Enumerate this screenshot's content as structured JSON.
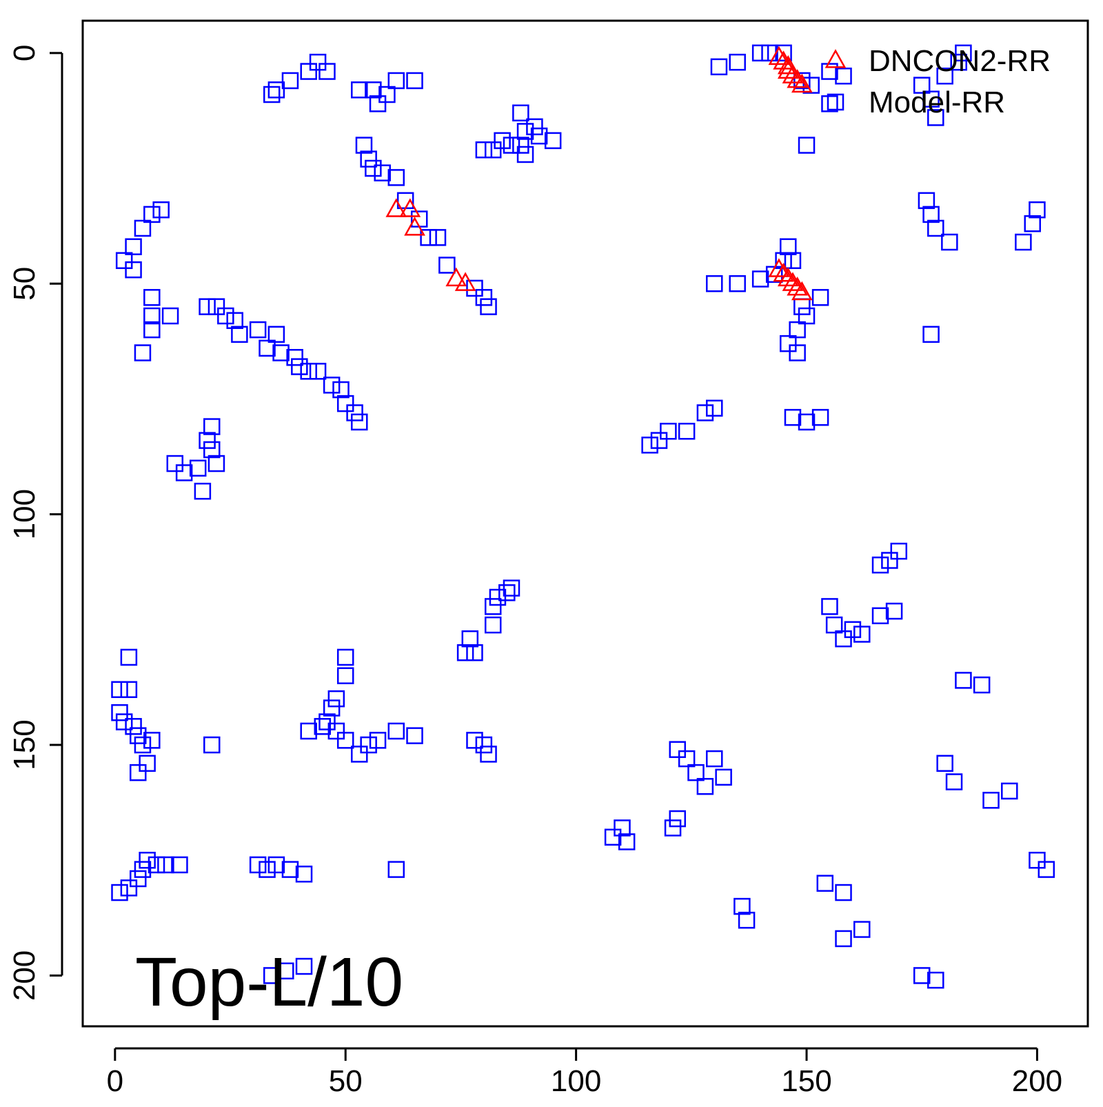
{
  "chart_data": {
    "type": "scatter",
    "title": "",
    "xlabel": "",
    "ylabel": "",
    "xlim": [
      -7,
      211
    ],
    "ylim": [
      211,
      -7
    ],
    "y_axis_reversed": true,
    "xticks": [
      0,
      50,
      100,
      150,
      200
    ],
    "yticks": [
      0,
      50,
      100,
      150,
      200
    ],
    "grid": false,
    "legend_position": "top-right",
    "corner_label": "Top-L/10",
    "series": [
      {
        "name": "DNCON2-RR",
        "marker": "triangle",
        "color": "#ff0000",
        "points": [
          [
            144,
            1
          ],
          [
            145,
            2
          ],
          [
            146,
            3
          ],
          [
            146,
            4
          ],
          [
            147,
            5
          ],
          [
            148,
            6
          ],
          [
            149,
            7
          ],
          [
            61,
            34
          ],
          [
            64,
            34
          ],
          [
            65,
            38
          ],
          [
            74,
            49
          ],
          [
            76,
            50
          ],
          [
            144,
            47
          ],
          [
            145,
            48
          ],
          [
            146,
            49
          ],
          [
            147,
            50
          ],
          [
            148,
            51
          ],
          [
            149,
            52
          ]
        ]
      },
      {
        "name": "Model-RR",
        "marker": "square",
        "color": "#0000ff",
        "points": [
          [
            34,
            9
          ],
          [
            35,
            8
          ],
          [
            38,
            6
          ],
          [
            42,
            4
          ],
          [
            44,
            2
          ],
          [
            46,
            4
          ],
          [
            53,
            8
          ],
          [
            56,
            8
          ],
          [
            57,
            11
          ],
          [
            59,
            9
          ],
          [
            61,
            6
          ],
          [
            65,
            6
          ],
          [
            54,
            20
          ],
          [
            55,
            23
          ],
          [
            56,
            25
          ],
          [
            58,
            26
          ],
          [
            61,
            27
          ],
          [
            63,
            32
          ],
          [
            66,
            36
          ],
          [
            68,
            40
          ],
          [
            70,
            40
          ],
          [
            72,
            46
          ],
          [
            78,
            51
          ],
          [
            80,
            53
          ],
          [
            81,
            55
          ],
          [
            80,
            21
          ],
          [
            82,
            21
          ],
          [
            84,
            19
          ],
          [
            86,
            20
          ],
          [
            88,
            20
          ],
          [
            89,
            17
          ],
          [
            91,
            16
          ],
          [
            92,
            18
          ],
          [
            95,
            19
          ],
          [
            88,
            13
          ],
          [
            89,
            22
          ],
          [
            2,
            45
          ],
          [
            4,
            42
          ],
          [
            4,
            47
          ],
          [
            6,
            38
          ],
          [
            8,
            35
          ],
          [
            10,
            34
          ],
          [
            8,
            53
          ],
          [
            8,
            57
          ],
          [
            8,
            60
          ],
          [
            6,
            65
          ],
          [
            12,
            57
          ],
          [
            20,
            55
          ],
          [
            22,
            55
          ],
          [
            24,
            57
          ],
          [
            26,
            58
          ],
          [
            27,
            61
          ],
          [
            31,
            60
          ],
          [
            33,
            64
          ],
          [
            35,
            61
          ],
          [
            36,
            65
          ],
          [
            39,
            66
          ],
          [
            40,
            68
          ],
          [
            42,
            69
          ],
          [
            44,
            69
          ],
          [
            47,
            72
          ],
          [
            49,
            73
          ],
          [
            50,
            76
          ],
          [
            52,
            78
          ],
          [
            53,
            80
          ],
          [
            21,
            81
          ],
          [
            20,
            84
          ],
          [
            21,
            86
          ],
          [
            22,
            89
          ],
          [
            18,
            90
          ],
          [
            15,
            91
          ],
          [
            13,
            89
          ],
          [
            19,
            95
          ],
          [
            1,
            138
          ],
          [
            3,
            138
          ],
          [
            3,
            131
          ],
          [
            1,
            143
          ],
          [
            2,
            145
          ],
          [
            4,
            146
          ],
          [
            5,
            148
          ],
          [
            6,
            150
          ],
          [
            8,
            149
          ],
          [
            7,
            154
          ],
          [
            5,
            156
          ],
          [
            21,
            150
          ],
          [
            50,
            131
          ],
          [
            50,
            135
          ],
          [
            48,
            140
          ],
          [
            47,
            142
          ],
          [
            46,
            145
          ],
          [
            48,
            147
          ],
          [
            50,
            149
          ],
          [
            53,
            152
          ],
          [
            55,
            150
          ],
          [
            57,
            149
          ],
          [
            61,
            147
          ],
          [
            65,
            148
          ],
          [
            42,
            147
          ],
          [
            45,
            146
          ],
          [
            77,
            127
          ],
          [
            78,
            130
          ],
          [
            76,
            130
          ],
          [
            82,
            120
          ],
          [
            83,
            118
          ],
          [
            85,
            117
          ],
          [
            86,
            116
          ],
          [
            82,
            124
          ],
          [
            78,
            149
          ],
          [
            80,
            150
          ],
          [
            81,
            152
          ],
          [
            1,
            182
          ],
          [
            3,
            181
          ],
          [
            5,
            179
          ],
          [
            6,
            177
          ],
          [
            7,
            175
          ],
          [
            9,
            176
          ],
          [
            11,
            176
          ],
          [
            14,
            176
          ],
          [
            31,
            176
          ],
          [
            33,
            177
          ],
          [
            35,
            176
          ],
          [
            38,
            177
          ],
          [
            41,
            178
          ],
          [
            34,
            200
          ],
          [
            37,
            199
          ],
          [
            41,
            198
          ],
          [
            61,
            177
          ],
          [
            131,
            3
          ],
          [
            135,
            2
          ],
          [
            140,
            0
          ],
          [
            142,
            0
          ],
          [
            145,
            0
          ],
          [
            149,
            6
          ],
          [
            151,
            7
          ],
          [
            155,
            4
          ],
          [
            158,
            5
          ],
          [
            155,
            11
          ],
          [
            150,
            20
          ],
          [
            175,
            7
          ],
          [
            177,
            10
          ],
          [
            178,
            14
          ],
          [
            180,
            5
          ],
          [
            183,
            2
          ],
          [
            184,
            0
          ],
          [
            176,
            32
          ],
          [
            177,
            35
          ],
          [
            178,
            38
          ],
          [
            181,
            41
          ],
          [
            197,
            41
          ],
          [
            199,
            37
          ],
          [
            200,
            34
          ],
          [
            130,
            50
          ],
          [
            135,
            50
          ],
          [
            140,
            49
          ],
          [
            143,
            48
          ],
          [
            145,
            45
          ],
          [
            146,
            42
          ],
          [
            147,
            45
          ],
          [
            149,
            55
          ],
          [
            153,
            53
          ],
          [
            150,
            57
          ],
          [
            148,
            60
          ],
          [
            146,
            63
          ],
          [
            148,
            65
          ],
          [
            177,
            61
          ],
          [
            116,
            85
          ],
          [
            118,
            84
          ],
          [
            120,
            82
          ],
          [
            124,
            82
          ],
          [
            128,
            78
          ],
          [
            130,
            77
          ],
          [
            147,
            79
          ],
          [
            150,
            80
          ],
          [
            153,
            79
          ],
          [
            166,
            111
          ],
          [
            168,
            110
          ],
          [
            170,
            108
          ],
          [
            155,
            120
          ],
          [
            156,
            124
          ],
          [
            158,
            127
          ],
          [
            160,
            125
          ],
          [
            162,
            126
          ],
          [
            166,
            122
          ],
          [
            169,
            121
          ],
          [
            184,
            136
          ],
          [
            188,
            137
          ],
          [
            180,
            154
          ],
          [
            182,
            158
          ],
          [
            190,
            162
          ],
          [
            194,
            160
          ],
          [
            108,
            170
          ],
          [
            110,
            168
          ],
          [
            111,
            171
          ],
          [
            121,
            168
          ],
          [
            122,
            166
          ],
          [
            122,
            151
          ],
          [
            124,
            153
          ],
          [
            126,
            156
          ],
          [
            128,
            159
          ],
          [
            130,
            153
          ],
          [
            132,
            157
          ],
          [
            154,
            180
          ],
          [
            158,
            182
          ],
          [
            136,
            185
          ],
          [
            137,
            188
          ],
          [
            158,
            192
          ],
          [
            162,
            190
          ],
          [
            175,
            200
          ],
          [
            178,
            201
          ],
          [
            200,
            175
          ],
          [
            202,
            177
          ]
        ]
      }
    ]
  }
}
